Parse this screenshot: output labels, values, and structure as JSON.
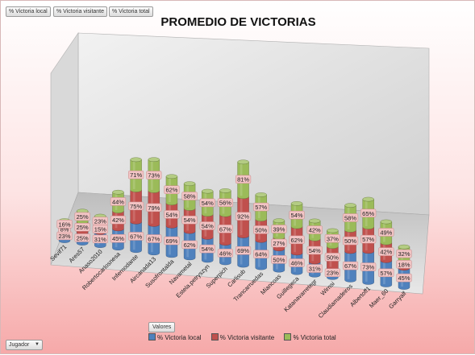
{
  "field_buttons": [
    "% Victoria local",
    "% Victoria visitante",
    "% Victoria total"
  ],
  "chart_data": {
    "type": "bar",
    "stacked": true,
    "title": "PROMEDIO DE VICTORIAS",
    "categories": [
      "Sevif71",
      "Ares57",
      "Anaso2010",
      "Robertocarlosnesa",
      "Infernodante",
      "Aircanada13",
      "Susofrontalda",
      "Navametal",
      "Estela.petryszyn",
      "Superpich",
      "Carlisub",
      "Trancarruedas",
      "Miancoas",
      "Guillegeca",
      "Katanavarretegr",
      "Wirnsi",
      "Claudiamadeiros",
      "Albertoff1",
      "Maer_60",
      "Garryalf"
    ],
    "series": [
      {
        "name": "% Victoria local",
        "color": "#4f81bd",
        "values": [
          23,
          25,
          31,
          45,
          67,
          67,
          69,
          62,
          54,
          46,
          69,
          64,
          50,
          46,
          31,
          23,
          67,
          73,
          57,
          45
        ]
      },
      {
        "name": "% Victoria visitante",
        "color": "#c0504d",
        "values": [
          8,
          25,
          15,
          42,
          75,
          79,
          54,
          54,
          54,
          67,
          92,
          50,
          27,
          62,
          54,
          50,
          50,
          57,
          42,
          18
        ]
      },
      {
        "name": "% Victoria total",
        "color": "#9bbb59",
        "values": [
          16,
          25,
          23,
          44,
          71,
          73,
          62,
          58,
          54,
          56,
          81,
          57,
          39,
          54,
          42,
          37,
          58,
          65,
          49,
          32
        ]
      }
    ],
    "value_suffix": "%",
    "legend_position": "bottom",
    "grid": false
  },
  "pivot": {
    "values_button": "Valores",
    "row_field_button": "Jugador"
  }
}
